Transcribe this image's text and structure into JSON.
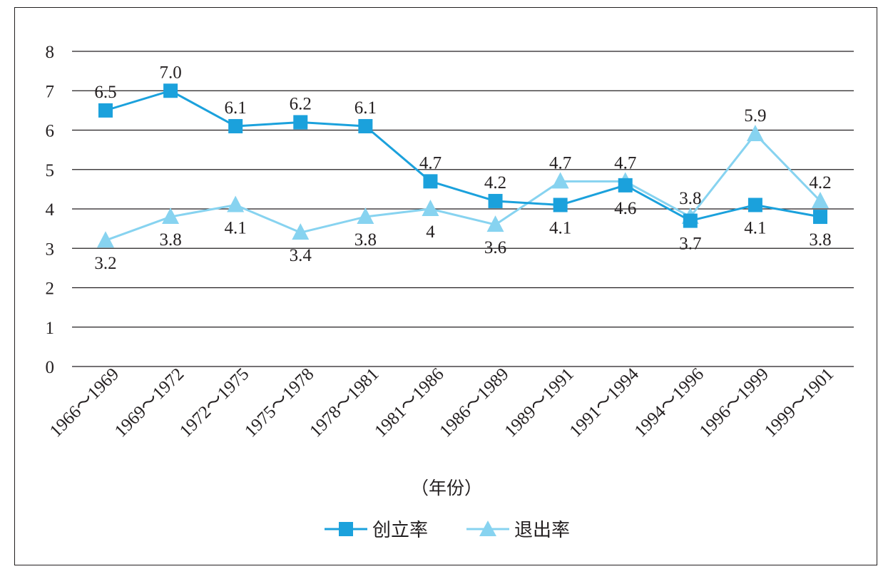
{
  "chart_data": {
    "type": "line",
    "title": "",
    "xlabel": "（年份）",
    "ylabel": "",
    "categories": [
      "1966～1969",
      "1969～1972",
      "1972～1975",
      "1975～1978",
      "1978～1981",
      "1981～1986",
      "1986～1989",
      "1989～1991",
      "1991～1994",
      "1994～1996",
      "1996～1999",
      "1999～1901"
    ],
    "ylim": [
      0,
      8
    ],
    "yticks": [
      "0",
      "1",
      "2",
      "3",
      "4",
      "5",
      "6",
      "7",
      "8"
    ],
    "grid": true,
    "legend_position": "bottom",
    "series": [
      {
        "name": "创立率",
        "marker": "square",
        "color": "#1ba1dc",
        "values": [
          6.5,
          7.0,
          6.1,
          6.2,
          6.1,
          4.7,
          4.2,
          4.1,
          4.6,
          3.7,
          4.1,
          3.8
        ],
        "labels": [
          "6.5",
          "7.0",
          "6.1",
          "6.2",
          "6.1",
          "4.7",
          "4.2",
          "4.1",
          "4.6",
          "3.7",
          "4.1",
          "3.8"
        ]
      },
      {
        "name": "退出率",
        "marker": "triangle",
        "color": "#87d3f0",
        "values": [
          3.2,
          3.8,
          4.1,
          3.4,
          3.8,
          4.0,
          3.6,
          4.7,
          4.7,
          3.8,
          5.9,
          4.2
        ],
        "labels": [
          "3.2",
          "3.8",
          "4.1",
          "3.4",
          "3.8",
          "4",
          "3.6",
          "4.7",
          "4.7",
          "3.8",
          "5.9",
          "4.2"
        ]
      }
    ]
  }
}
